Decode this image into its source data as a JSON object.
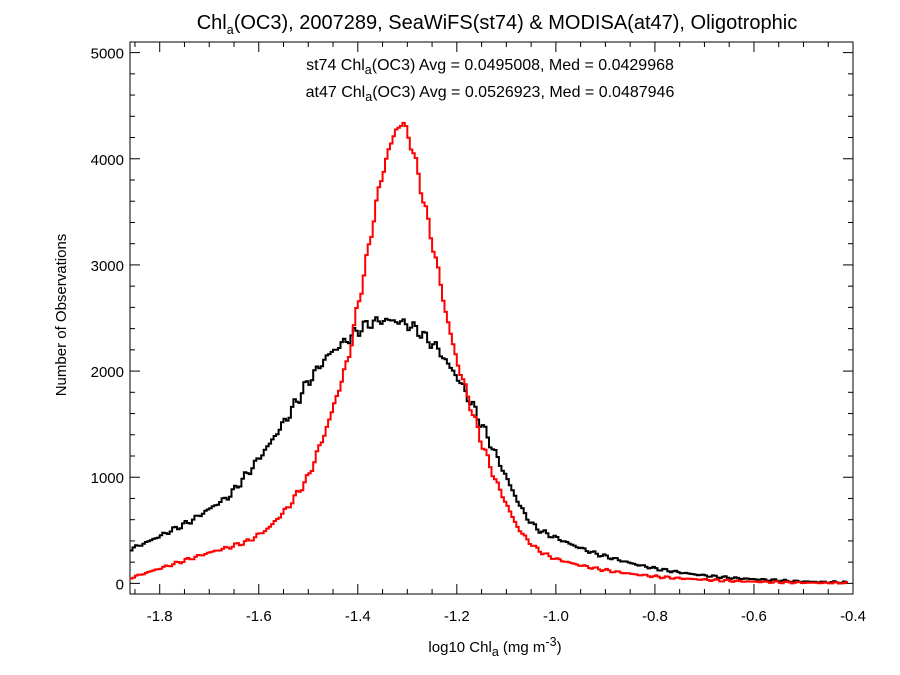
{
  "chart_data": {
    "type": "line",
    "title": {
      "pre": "Chl",
      "sub": "a",
      "post": "(OC3), 2007289, SeaWiFS(st74) & MODISA(at47), Oligotrophic"
    },
    "xlabel": {
      "pre": "log10 Chl",
      "sub": "a",
      "mid": " (mg m",
      "sup": "-3",
      "post": ")"
    },
    "ylabel": "Number of Observations",
    "xlim": [
      -1.86,
      -0.4
    ],
    "ylim": [
      -100,
      5100
    ],
    "x_ticks": [
      -1.8,
      -1.6,
      -1.4,
      -1.2,
      -1.0,
      -0.8,
      -0.6,
      -0.4
    ],
    "x_tick_labels": [
      "-1.8",
      "-1.6",
      "-1.4",
      "-1.2",
      "-1.0",
      "-0.8",
      "-0.6",
      "-0.4"
    ],
    "y_ticks": [
      0,
      1000,
      2000,
      3000,
      4000,
      5000
    ],
    "y_tick_labels": [
      "0",
      "1000",
      "2000",
      "3000",
      "4000",
      "5000"
    ],
    "annotations": [
      {
        "color": "#000000",
        "pre": "st74 Chl",
        "sub": "a",
        "post": "(OC3) Avg = 0.0495008, Med = 0.0429968"
      },
      {
        "color": "#ff0000",
        "pre": "at47 Chl",
        "sub": "a",
        "post": "(OC3) Avg = 0.0526923, Med = 0.0487946"
      }
    ],
    "series": [
      {
        "color": "#000000",
        "x": [
          -1.86,
          -1.82,
          -1.78,
          -1.74,
          -1.7,
          -1.66,
          -1.62,
          -1.58,
          -1.54,
          -1.5,
          -1.46,
          -1.42,
          -1.4,
          -1.38,
          -1.36,
          -1.34,
          -1.32,
          -1.3,
          -1.28,
          -1.26,
          -1.24,
          -1.22,
          -1.2,
          -1.18,
          -1.16,
          -1.14,
          -1.12,
          -1.1,
          -1.08,
          -1.06,
          -1.04,
          -1.02,
          -1.0,
          -0.96,
          -0.92,
          -0.88,
          -0.84,
          -0.8,
          -0.76,
          -0.72,
          -0.68,
          -0.64,
          -0.6,
          -0.56,
          -0.52,
          -0.48,
          -0.44,
          -0.41
        ],
        "y": [
          320,
          400,
          490,
          580,
          700,
          820,
          1050,
          1300,
          1580,
          1900,
          2150,
          2300,
          2380,
          2440,
          2470,
          2480,
          2470,
          2440,
          2390,
          2300,
          2220,
          2080,
          1950,
          1780,
          1600,
          1400,
          1200,
          1000,
          800,
          630,
          520,
          470,
          430,
          350,
          280,
          230,
          180,
          140,
          110,
          85,
          65,
          50,
          40,
          30,
          20,
          15,
          10,
          8
        ]
      },
      {
        "color": "#ff0000",
        "x": [
          -1.86,
          -1.82,
          -1.78,
          -1.74,
          -1.7,
          -1.66,
          -1.62,
          -1.58,
          -1.54,
          -1.5,
          -1.46,
          -1.42,
          -1.4,
          -1.38,
          -1.36,
          -1.34,
          -1.32,
          -1.31,
          -1.3,
          -1.29,
          -1.28,
          -1.26,
          -1.24,
          -1.22,
          -1.2,
          -1.18,
          -1.16,
          -1.14,
          -1.12,
          -1.1,
          -1.08,
          -1.06,
          -1.04,
          -1.02,
          -1.0,
          -0.96,
          -0.92,
          -0.88,
          -0.84,
          -0.8,
          -0.76,
          -0.72,
          -0.68,
          -0.64,
          -0.6,
          -0.56,
          -0.52,
          -0.48,
          -0.44,
          -0.41
        ],
        "y": [
          50,
          110,
          170,
          230,
          290,
          340,
          400,
          520,
          720,
          1000,
          1500,
          2100,
          2600,
          3100,
          3650,
          4050,
          4300,
          4340,
          4250,
          4100,
          3900,
          3450,
          3000,
          2500,
          2100,
          1800,
          1480,
          1200,
          950,
          750,
          550,
          420,
          330,
          270,
          230,
          180,
          140,
          110,
          85,
          65,
          50,
          40,
          30,
          22,
          16,
          12,
          8,
          5,
          3,
          2
        ]
      }
    ]
  }
}
